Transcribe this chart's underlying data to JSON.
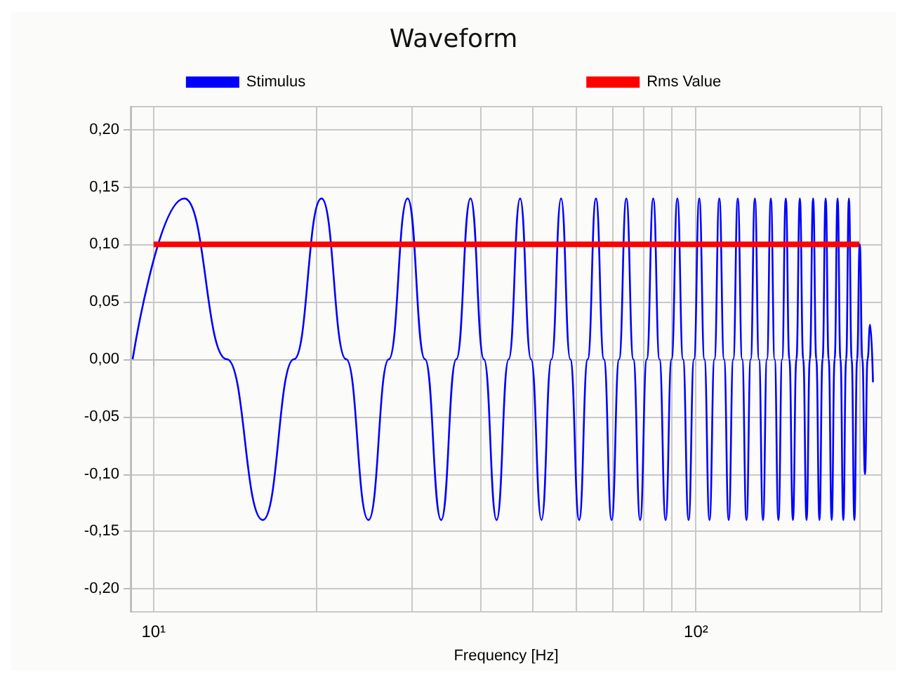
{
  "chart_data": {
    "type": "line",
    "title": "Waveform",
    "xlabel": "Frequency [Hz]",
    "log": "x",
    "grid": true,
    "legend": "top",
    "marker": "none",
    "line_style": "solid",
    "xlim": [
      9.07,
      220
    ],
    "xticks": [
      {
        "value": 10,
        "label": "10¹"
      },
      {
        "value": 20,
        "label": null
      },
      {
        "value": 30,
        "label": null
      },
      {
        "value": 40,
        "label": null
      },
      {
        "value": 50,
        "label": null
      },
      {
        "value": 60,
        "label": null
      },
      {
        "value": 70,
        "label": null
      },
      {
        "value": 80,
        "label": null
      },
      {
        "value": 90,
        "label": null
      },
      {
        "value": 100,
        "label": "10²"
      },
      {
        "value": 200,
        "label": null
      }
    ],
    "ylim": [
      -0.22,
      0.22
    ],
    "yticks": [
      {
        "value": -0.2,
        "label": "-0,20"
      },
      {
        "value": -0.15,
        "label": "-0,15"
      },
      {
        "value": -0.1,
        "label": "-0,10"
      },
      {
        "value": -0.05,
        "label": "-0,05"
      },
      {
        "value": 0,
        "label": "0,00"
      },
      {
        "value": 0.05,
        "label": "0,05"
      },
      {
        "value": 0.1,
        "label": "0,10"
      },
      {
        "value": 0.15,
        "label": "0,15"
      },
      {
        "value": 0.2,
        "label": "0,20"
      }
    ],
    "series": [
      {
        "name": "Stimulus",
        "color": "#0000ff",
        "x": [
          9.15,
          11.4,
          13.65,
          15.9,
          18.15,
          20.4,
          22.65,
          24.9,
          27.15,
          29.4,
          31.65,
          33.9,
          36.15,
          38.4,
          40.65,
          42.9,
          45.15,
          47.4,
          49.65,
          51.9,
          54.15,
          56.4,
          58.65,
          60.9,
          63.15,
          65.4,
          67.65,
          69.9,
          72.15,
          74.4,
          76.65,
          78.9,
          81.15,
          83.4,
          85.65,
          87.9,
          90.15,
          92.4,
          94.65,
          96.9,
          99.15,
          101.4,
          103.65,
          105.9,
          108.15,
          110.4,
          112.65,
          114.9,
          117.15,
          119.4,
          121.65,
          123.9,
          126.15,
          128.4,
          130.65,
          132.9,
          135.15,
          137.4,
          139.65,
          141.9,
          144.15,
          146.4,
          148.65,
          150.9,
          153.15,
          155.4,
          157.65,
          159.9,
          162.15,
          164.4,
          166.65,
          168.9,
          171.15,
          173.4,
          175.65,
          177.9,
          180.15,
          182.4,
          184.65,
          186.9,
          189.15,
          191.4,
          193.65,
          195.9,
          198.15,
          200.4,
          202.65,
          204.9,
          207.15,
          209.4,
          212
        ],
        "values": [
          0,
          0.14,
          0,
          -0.14,
          0,
          0.14,
          0,
          -0.14,
          0,
          0.14,
          0,
          -0.14,
          0,
          0.14,
          0,
          -0.14,
          0,
          0.14,
          0,
          -0.14,
          0,
          0.14,
          0,
          -0.14,
          0,
          0.14,
          0,
          -0.14,
          0,
          0.14,
          0,
          -0.14,
          0,
          0.14,
          0,
          -0.14,
          0,
          0.14,
          0,
          -0.14,
          0,
          0.14,
          0,
          -0.14,
          0,
          0.14,
          0,
          -0.14,
          0,
          0.14,
          0,
          -0.14,
          0,
          0.14,
          0,
          -0.14,
          0,
          0.14,
          0,
          -0.14,
          0,
          0.14,
          0,
          -0.14,
          0,
          0.14,
          0,
          -0.14,
          0,
          0.14,
          0,
          -0.14,
          0,
          0.14,
          0,
          -0.14,
          0,
          0.14,
          0,
          -0.14,
          0,
          0.14,
          0,
          -0.14,
          0,
          0.1,
          0,
          -0.1,
          0,
          0.03,
          -0.02
        ]
      },
      {
        "name": "Rms Value",
        "color": "#ff0000",
        "x": [
          10,
          200
        ],
        "values": [
          0.1,
          0.1
        ]
      }
    ]
  }
}
